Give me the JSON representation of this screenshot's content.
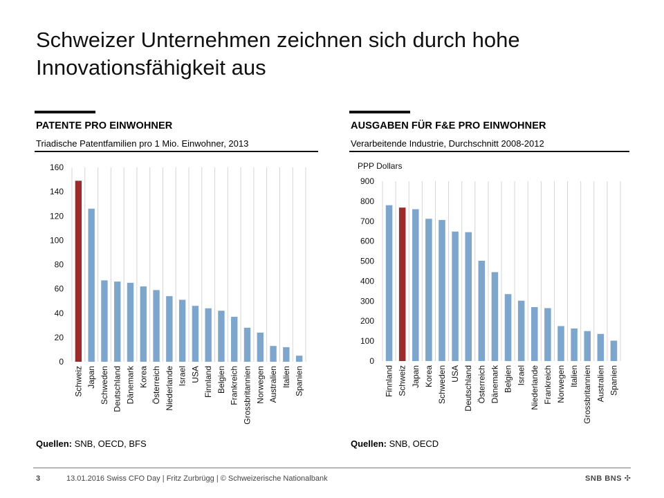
{
  "slide": {
    "title": "Schweizer Unternehmen zeichnen sich durch hohe Innovationsfähigkeit aus"
  },
  "footer": {
    "page_number": "3",
    "text": "13.01.2016   Swiss CFO Day  |  Fritz Zurbrügg  |  © Schweizerische Nationalbank",
    "logo_text": "SNB BNS",
    "logo_icon": "swiss-cross-icon"
  },
  "panels": {
    "left": {
      "heading": "PATENTE PRO EINWOHNER",
      "subtitle": "Triadische Patentfamilien pro 1 Mio. Einwohner, 2013",
      "source_label": "Quellen:",
      "source_text": " SNB, OECD, BFS"
    },
    "right": {
      "heading": "AUSGABEN FÜR F&E PRO EINWOHNER",
      "subtitle": "Verarbeitende Industrie, Durchschnitt 2008-2012",
      "source_label": "Quellen:",
      "source_text": " SNB, OECD"
    }
  },
  "chart_data": [
    {
      "type": "bar",
      "title": "PATENTE PRO EINWOHNER",
      "subtitle": "Triadische Patentfamilien pro 1 Mio. Einwohner, 2013",
      "ylabel": "",
      "ylim": [
        0,
        160
      ],
      "yticks": [
        0,
        20,
        40,
        60,
        80,
        100,
        120,
        140,
        160
      ],
      "grid": "vertical",
      "categories": [
        "Schweiz",
        "Japan",
        "Schweden",
        "Deutschland",
        "Dänemark",
        "Korea",
        "Österreich",
        "Niederlande",
        "Israel",
        "USA",
        "Finnland",
        "Belgien",
        "Frankreich",
        "Grossbritannien",
        "Norwegen",
        "Australien",
        "Italien",
        "Spanien"
      ],
      "values": [
        149,
        126,
        67,
        66,
        65,
        62,
        59,
        54,
        51,
        46,
        44,
        42,
        37,
        28,
        24,
        13,
        12,
        5
      ],
      "highlight": "Schweiz",
      "colors": {
        "bar": "#7ea6cc",
        "highlight": "#9e2a2b"
      },
      "source": "Quellen: SNB, OECD, BFS"
    },
    {
      "type": "bar",
      "title": "AUSGABEN FÜR F&E PRO EINWOHNER",
      "subtitle": "Verarbeitende Industrie, Durchschnitt 2008-2012",
      "ylabel": "PPP Dollars",
      "ylim": [
        0,
        900
      ],
      "yticks": [
        0,
        100,
        200,
        300,
        400,
        500,
        600,
        700,
        800,
        900
      ],
      "grid": "vertical",
      "categories": [
        "Finnland",
        "Schweiz",
        "Japan",
        "Korea",
        "Schweden",
        "USA",
        "Deutschland",
        "Österreich",
        "Dänemark",
        "Belgien",
        "Israel",
        "Niederlande",
        "Frankreich",
        "Norwegen",
        "Italien",
        "Grossbritannien",
        "Australien",
        "Spanien"
      ],
      "values": [
        780,
        768,
        760,
        712,
        706,
        648,
        645,
        502,
        445,
        335,
        302,
        270,
        265,
        175,
        163,
        150,
        136,
        102
      ],
      "highlight": "Schweiz",
      "colors": {
        "bar": "#7ea6cc",
        "highlight": "#9e2a2b"
      },
      "source": "Quellen: SNB, OECD"
    }
  ]
}
